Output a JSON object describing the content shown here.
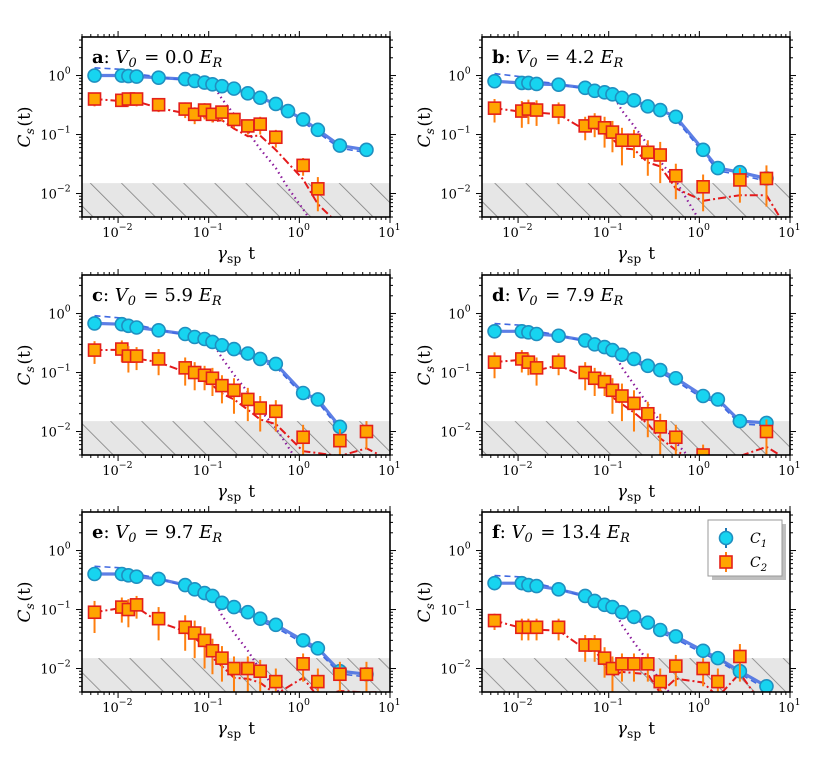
{
  "figure": {
    "panel_labels": [
      "a",
      "b",
      "c",
      "d",
      "e",
      "f"
    ],
    "ylabel": "C_s(t)",
    "xlabel": "γ_sp t",
    "x_ticks": [
      "10^{-2}",
      "10^{-1}",
      "10^{0}",
      "10^{1}"
    ],
    "y_ticks": [
      "10^{-2}",
      "10^{-1}",
      "10^{0}"
    ],
    "legend": {
      "c1": "C_1",
      "c2": "C_2"
    },
    "colors": {
      "c1_fill": "#17d4f0",
      "c1_edge": "#1f8fc0",
      "c1_err": "#1f77b4",
      "c2_fill": "#ffa500",
      "c2_edge": "#e4201a",
      "c2_err": "#ff7f0e",
      "fit_c1": "#4169e1",
      "fit_c2": "#e41a1c",
      "dotted": "#8b1a9b",
      "hatch_fill": "#e6e6e6",
      "hatch_line": "#7f7f7f"
    }
  },
  "chart_data": [
    {
      "type": "scatter",
      "panel": "a",
      "title": "V_0 = 0.0 E_R",
      "xlabel": "γ_sp t",
      "ylabel": "C_s(t)",
      "x_scale": "log",
      "y_scale": "log",
      "xlim": [
        0.004,
        10
      ],
      "ylim": [
        0.004,
        4.5
      ],
      "noise_floor": 0.015,
      "series": [
        {
          "name": "C_1",
          "x": [
            0.0055,
            0.011,
            0.013,
            0.016,
            0.028,
            0.055,
            0.07,
            0.09,
            0.11,
            0.14,
            0.19,
            0.27,
            0.37,
            0.55,
            0.75,
            1.1,
            1.6,
            2.8,
            5.5
          ],
          "y": [
            1.0,
            1.0,
            0.98,
            0.96,
            0.92,
            0.87,
            0.81,
            0.76,
            0.71,
            0.66,
            0.6,
            0.5,
            0.42,
            0.33,
            0.25,
            0.18,
            0.12,
            0.065,
            0.055
          ]
        },
        {
          "name": "C_2",
          "x": [
            0.0055,
            0.011,
            0.013,
            0.016,
            0.028,
            0.055,
            0.07,
            0.09,
            0.11,
            0.14,
            0.19,
            0.27,
            0.37,
            0.55,
            1.1,
            1.6
          ],
          "y": [
            0.4,
            0.38,
            0.4,
            0.4,
            0.32,
            0.27,
            0.22,
            0.26,
            0.22,
            0.24,
            0.18,
            0.14,
            0.15,
            0.09,
            0.03,
            0.012
          ],
          "err": [
            0.1,
            0.08,
            0.1,
            0.1,
            0.08,
            0.08,
            0.07,
            0.08,
            0.06,
            0.07,
            0.05,
            0.04,
            0.05,
            0.03,
            0.01,
            0.007
          ]
        }
      ]
    },
    {
      "type": "scatter",
      "panel": "b",
      "title": "V_0 = 4.2 E_R",
      "xlabel": "γ_sp t",
      "ylabel": "C_s(t)",
      "x_scale": "log",
      "y_scale": "log",
      "xlim": [
        0.004,
        10
      ],
      "ylim": [
        0.004,
        4.5
      ],
      "noise_floor": 0.015,
      "series": [
        {
          "name": "C_1",
          "x": [
            0.0055,
            0.011,
            0.013,
            0.016,
            0.028,
            0.055,
            0.07,
            0.09,
            0.11,
            0.14,
            0.19,
            0.27,
            0.37,
            0.55,
            1.1,
            1.6,
            2.8,
            5.5
          ],
          "y": [
            0.8,
            0.75,
            0.75,
            0.72,
            0.7,
            0.62,
            0.55,
            0.52,
            0.48,
            0.42,
            0.38,
            0.3,
            0.26,
            0.2,
            0.055,
            0.027,
            0.023,
            0.018
          ]
        },
        {
          "name": "C_2",
          "x": [
            0.0055,
            0.011,
            0.013,
            0.016,
            0.028,
            0.055,
            0.07,
            0.09,
            0.11,
            0.14,
            0.19,
            0.27,
            0.37,
            0.55,
            1.1,
            2.8,
            5.5
          ],
          "y": [
            0.28,
            0.25,
            0.27,
            0.26,
            0.25,
            0.14,
            0.16,
            0.13,
            0.11,
            0.08,
            0.08,
            0.05,
            0.045,
            0.02,
            0.013,
            0.017,
            0.018
          ],
          "err": [
            0.12,
            0.12,
            0.12,
            0.12,
            0.1,
            0.06,
            0.07,
            0.07,
            0.06,
            0.05,
            0.04,
            0.03,
            0.03,
            0.012,
            0.008,
            0.01,
            0.012
          ]
        }
      ]
    },
    {
      "type": "scatter",
      "panel": "c",
      "title": "V_0 = 5.9 E_R",
      "xlabel": "γ_sp t",
      "ylabel": "C_s(t)",
      "x_scale": "log",
      "y_scale": "log",
      "xlim": [
        0.004,
        10
      ],
      "ylim": [
        0.004,
        4.5
      ],
      "noise_floor": 0.015,
      "series": [
        {
          "name": "C_1",
          "x": [
            0.0055,
            0.011,
            0.013,
            0.016,
            0.028,
            0.055,
            0.07,
            0.09,
            0.11,
            0.14,
            0.19,
            0.27,
            0.37,
            0.55,
            1.1,
            1.6,
            2.8
          ],
          "y": [
            0.68,
            0.66,
            0.62,
            0.58,
            0.52,
            0.45,
            0.4,
            0.37,
            0.33,
            0.29,
            0.25,
            0.21,
            0.17,
            0.14,
            0.045,
            0.035,
            0.012
          ]
        },
        {
          "name": "C_2",
          "x": [
            0.0055,
            0.011,
            0.013,
            0.016,
            0.028,
            0.055,
            0.07,
            0.09,
            0.11,
            0.14,
            0.19,
            0.27,
            0.37,
            0.55,
            1.1,
            2.8,
            5.5
          ],
          "y": [
            0.24,
            0.25,
            0.19,
            0.19,
            0.17,
            0.12,
            0.1,
            0.09,
            0.08,
            0.06,
            0.05,
            0.035,
            0.025,
            0.022,
            0.008,
            0.007,
            0.01
          ],
          "err": [
            0.1,
            0.1,
            0.09,
            0.08,
            0.08,
            0.06,
            0.05,
            0.04,
            0.04,
            0.03,
            0.03,
            0.02,
            0.015,
            0.012,
            0.005,
            0.004,
            0.005
          ]
        }
      ]
    },
    {
      "type": "scatter",
      "panel": "d",
      "title": "V_0 = 7.9 E_R",
      "xlabel": "γ_sp t",
      "ylabel": "C_s(t)",
      "x_scale": "log",
      "y_scale": "log",
      "xlim": [
        0.004,
        10
      ],
      "ylim": [
        0.004,
        4.5
      ],
      "noise_floor": 0.015,
      "series": [
        {
          "name": "C_1",
          "x": [
            0.0055,
            0.011,
            0.013,
            0.016,
            0.028,
            0.055,
            0.07,
            0.09,
            0.11,
            0.14,
            0.19,
            0.27,
            0.37,
            0.55,
            1.1,
            1.6,
            2.8,
            5.5
          ],
          "y": [
            0.5,
            0.5,
            0.48,
            0.45,
            0.42,
            0.35,
            0.3,
            0.27,
            0.24,
            0.2,
            0.17,
            0.13,
            0.11,
            0.08,
            0.04,
            0.035,
            0.015,
            0.014
          ]
        },
        {
          "name": "C_2",
          "x": [
            0.0055,
            0.011,
            0.013,
            0.016,
            0.028,
            0.055,
            0.07,
            0.09,
            0.11,
            0.14,
            0.19,
            0.27,
            0.37,
            0.55,
            1.1,
            5.5
          ],
          "y": [
            0.15,
            0.17,
            0.15,
            0.12,
            0.15,
            0.1,
            0.08,
            0.07,
            0.05,
            0.04,
            0.03,
            0.02,
            0.012,
            0.008,
            0.004,
            0.01
          ],
          "err": [
            0.07,
            0.07,
            0.06,
            0.06,
            0.06,
            0.05,
            0.04,
            0.03,
            0.03,
            0.025,
            0.02,
            0.012,
            0.008,
            0.005,
            0.002,
            0.006
          ]
        }
      ]
    },
    {
      "type": "scatter",
      "panel": "e",
      "title": "V_0 = 9.7 E_R",
      "xlabel": "γ_sp t",
      "ylabel": "C_s(t)",
      "x_scale": "log",
      "y_scale": "log",
      "xlim": [
        0.004,
        10
      ],
      "ylim": [
        0.004,
        4.5
      ],
      "noise_floor": 0.015,
      "series": [
        {
          "name": "C_1",
          "x": [
            0.0055,
            0.011,
            0.013,
            0.016,
            0.028,
            0.055,
            0.07,
            0.09,
            0.11,
            0.14,
            0.19,
            0.27,
            0.37,
            0.55,
            1.1,
            1.6,
            2.8,
            5.5
          ],
          "y": [
            0.4,
            0.4,
            0.38,
            0.36,
            0.33,
            0.26,
            0.22,
            0.19,
            0.17,
            0.13,
            0.11,
            0.09,
            0.07,
            0.055,
            0.03,
            0.022,
            0.009,
            0.008
          ]
        },
        {
          "name": "C_2",
          "x": [
            0.0055,
            0.011,
            0.013,
            0.016,
            0.028,
            0.055,
            0.07,
            0.09,
            0.11,
            0.14,
            0.19,
            0.27,
            0.37,
            0.55,
            1.1,
            1.6,
            2.8,
            5.5
          ],
          "y": [
            0.09,
            0.11,
            0.1,
            0.12,
            0.07,
            0.05,
            0.04,
            0.03,
            0.02,
            0.015,
            0.01,
            0.01,
            0.009,
            0.006,
            0.012,
            0.006,
            0.008,
            0.008
          ],
          "err": [
            0.05,
            0.05,
            0.05,
            0.05,
            0.04,
            0.03,
            0.025,
            0.02,
            0.012,
            0.009,
            0.006,
            0.006,
            0.005,
            0.004,
            0.006,
            0.004,
            0.005,
            0.005
          ]
        }
      ]
    },
    {
      "type": "scatter",
      "panel": "f",
      "title": "V_0 = 13.4 E_R",
      "xlabel": "γ_sp t",
      "ylabel": "C_s(t)",
      "x_scale": "log",
      "y_scale": "log",
      "xlim": [
        0.004,
        10
      ],
      "ylim": [
        0.004,
        4.5
      ],
      "noise_floor": 0.015,
      "legend": "top-right",
      "series": [
        {
          "name": "C_1",
          "x": [
            0.0055,
            0.011,
            0.013,
            0.016,
            0.028,
            0.055,
            0.07,
            0.09,
            0.11,
            0.14,
            0.19,
            0.27,
            0.37,
            0.55,
            1.1,
            1.6,
            2.8,
            5.5
          ],
          "y": [
            0.28,
            0.28,
            0.26,
            0.25,
            0.22,
            0.17,
            0.14,
            0.12,
            0.11,
            0.09,
            0.075,
            0.06,
            0.045,
            0.035,
            0.02,
            0.015,
            0.009,
            0.005
          ]
        },
        {
          "name": "C_2",
          "x": [
            0.0055,
            0.011,
            0.013,
            0.016,
            0.028,
            0.055,
            0.07,
            0.09,
            0.11,
            0.14,
            0.19,
            0.27,
            0.37,
            0.55,
            1.1,
            1.6,
            2.8
          ],
          "y": [
            0.065,
            0.05,
            0.05,
            0.05,
            0.05,
            0.025,
            0.025,
            0.015,
            0.01,
            0.012,
            0.012,
            0.012,
            0.006,
            0.011,
            0.01,
            0.006,
            0.016
          ],
          "err": [
            0.02,
            0.02,
            0.02,
            0.02,
            0.02,
            0.012,
            0.012,
            0.008,
            0.006,
            0.006,
            0.006,
            0.006,
            0.004,
            0.006,
            0.005,
            0.004,
            0.01
          ]
        }
      ]
    }
  ]
}
